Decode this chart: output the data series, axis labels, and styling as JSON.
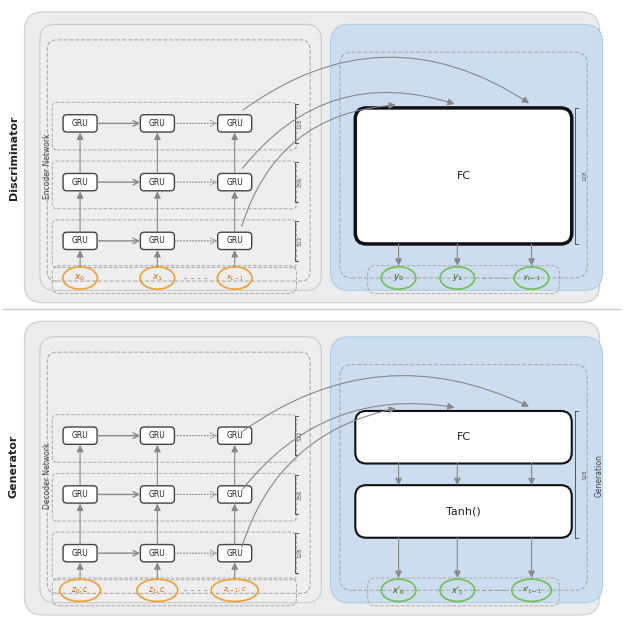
{
  "fig_width": 6.24,
  "fig_height": 6.24,
  "bg_color": "#ffffff",
  "panel_bg_light_gray": "#e8e8e8",
  "panel_bg_blue": "#cce0f5",
  "dashed_box_color": "#aaaaaa",
  "gru_box_color": "#ffffff",
  "gru_border_color": "#444444",
  "fc_box_color": "#ffffff",
  "fc_border_color": "#111111",
  "arrow_color": "#888888",
  "orange_ellipse": "#f0a030",
  "green_ellipse": "#70c050",
  "title_disc": "Discriminator",
  "title_gen": "Generator",
  "label_enc": "Encoder Network",
  "label_dec": "Decoder Network",
  "label_gen_block": "Generation",
  "dim_top": "128",
  "dim_mid": "256",
  "dim_bot_disc": "512",
  "dim_bot_gen": "128",
  "dim_fc_disc": "128",
  "dim_fc_gen": "128"
}
